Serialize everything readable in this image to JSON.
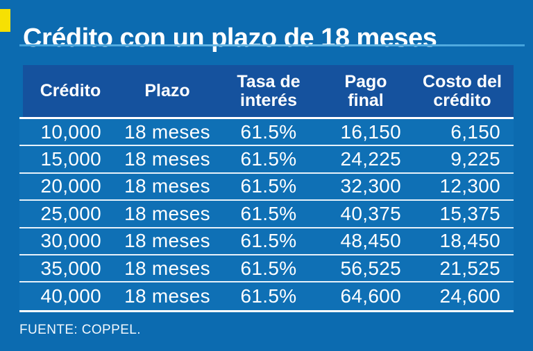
{
  "title": {
    "text": "Crédito con un plazo de 18 meses"
  },
  "source": {
    "text": "FUENTE: COPPEL."
  },
  "colors": {
    "background": "#0C6BB0",
    "table_body_bg": "#0F70B5",
    "header_bg": "#15529E",
    "accent_yellow": "#F6E003",
    "title_rule": "#44A3DC",
    "rule_white": "#FFFFFF",
    "row_divider": "#E7F2FA",
    "text": "#FFFFFF"
  },
  "table": {
    "header_lines": [
      [
        "Crédito",
        ""
      ],
      [
        "Plazo",
        ""
      ],
      [
        "Tasa de",
        "interés"
      ],
      [
        "Pago",
        "final"
      ],
      [
        "Costo del",
        "crédito"
      ]
    ]
  },
  "chart_data": {
    "type": "table",
    "title": "Crédito con un plazo de 18 meses",
    "columns": [
      "Crédito",
      "Plazo",
      "Tasa de interés",
      "Pago final",
      "Costo del crédito"
    ],
    "rows": [
      [
        "10,000",
        "18 meses",
        "61.5%",
        "16,150",
        "6,150"
      ],
      [
        "15,000",
        "18 meses",
        "61.5%",
        "24,225",
        "9,225"
      ],
      [
        "20,000",
        "18 meses",
        "61.5%",
        "32,300",
        "12,300"
      ],
      [
        "25,000",
        "18 meses",
        "61.5%",
        "40,375",
        "15,375"
      ],
      [
        "30,000",
        "18 meses",
        "61.5%",
        "48,450",
        "18,450"
      ],
      [
        "35,000",
        "18 meses",
        "61.5%",
        "56,525",
        "21,525"
      ],
      [
        "40,000",
        "18 meses",
        "61.5%",
        "64,600",
        "24,600"
      ]
    ],
    "source": "FUENTE: COPPEL."
  }
}
